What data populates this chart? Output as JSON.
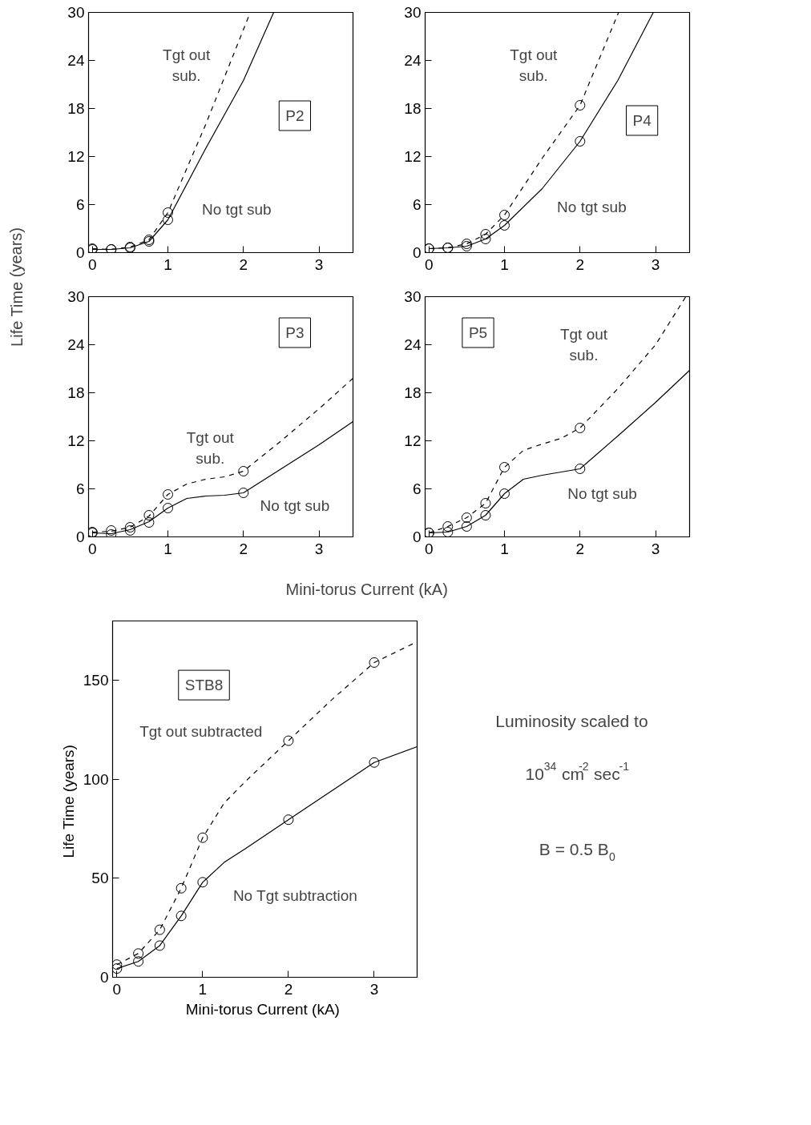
{
  "chart_data": [
    {
      "type": "line",
      "title": "P2",
      "ylabel": "Life Time  (years)",
      "xlim": [
        -0.05,
        3.45
      ],
      "ylim": [
        0,
        30
      ],
      "xticks": [
        0,
        1,
        2,
        3
      ],
      "yticks": [
        0,
        6,
        12,
        18,
        24,
        30
      ],
      "series": [
        {
          "line_style": "dashed",
          "color": "#000000",
          "x": [
            0,
            0.25,
            0.5,
            0.75,
            1,
            1.5,
            2.09
          ],
          "values": [
            0.5,
            0.4,
            0.7,
            1.6,
            5.0,
            16,
            30
          ]
        },
        {
          "line_style": "solid",
          "color": "#000000",
          "x": [
            0,
            0.25,
            0.5,
            0.75,
            1,
            1.5,
            2,
            2.4
          ],
          "values": [
            0.4,
            0.4,
            0.6,
            1.4,
            4.1,
            13,
            21.5,
            30
          ]
        },
        {
          "type": "scatter",
          "marker": "circle",
          "color": "#000000",
          "x": [
            0,
            0.25,
            0.5,
            0.75,
            1
          ],
          "values": [
            0.5,
            0.4,
            0.7,
            1.6,
            5.0
          ]
        },
        {
          "type": "scatter",
          "marker": "circle",
          "color": "#000000",
          "x": [
            0,
            0.25,
            0.5,
            0.75,
            1
          ],
          "values": [
            0.4,
            0.4,
            0.6,
            1.4,
            4.1
          ]
        }
      ],
      "annotations": [
        "Tgt out\nsub.",
        "No tgt sub"
      ]
    },
    {
      "type": "line",
      "title": "P4",
      "xlim": [
        -0.05,
        3.45
      ],
      "ylim": [
        0,
        30
      ],
      "xticks": [
        0,
        1,
        2,
        3
      ],
      "yticks": [
        0,
        6,
        12,
        18,
        24,
        30
      ],
      "series": [
        {
          "line_style": "dashed",
          "color": "#000000",
          "x": [
            0,
            0.25,
            0.5,
            0.75,
            1,
            1.5,
            2,
            2.51
          ],
          "values": [
            0.5,
            0.6,
            1.1,
            2.3,
            4.7,
            11.8,
            18.4,
            30
          ]
        },
        {
          "line_style": "solid",
          "color": "#000000",
          "x": [
            0,
            0.25,
            0.5,
            0.75,
            1,
            1.5,
            2,
            2.5,
            2.97
          ],
          "values": [
            0.5,
            0.6,
            0.8,
            1.7,
            3.4,
            8,
            13.9,
            21.5,
            30
          ]
        },
        {
          "type": "scatter",
          "marker": "circle",
          "color": "#000000",
          "x": [
            0,
            0.25,
            0.5,
            0.75,
            1,
            2
          ],
          "values": [
            0.5,
            0.6,
            1.1,
            2.3,
            4.7,
            18.4
          ]
        },
        {
          "type": "scatter",
          "marker": "circle",
          "color": "#000000",
          "x": [
            0,
            0.25,
            0.5,
            0.75,
            1,
            2
          ],
          "values": [
            0.5,
            0.6,
            0.8,
            1.7,
            3.4,
            13.9
          ]
        }
      ],
      "annotations": [
        "Tgt out\nsub.",
        "No tgt sub"
      ]
    },
    {
      "type": "line",
      "title": "P3",
      "xlabel": "Mini-torus Current  (kA)",
      "xlim": [
        -0.05,
        3.45
      ],
      "ylim": [
        0,
        30
      ],
      "xticks": [
        0,
        1,
        2,
        3
      ],
      "yticks": [
        0,
        6,
        12,
        18,
        24,
        30
      ],
      "series": [
        {
          "line_style": "dashed",
          "color": "#000000",
          "x": [
            0,
            0.25,
            0.5,
            0.75,
            1,
            1.25,
            1.5,
            1.75,
            2,
            2.5,
            3,
            3.45
          ],
          "values": [
            0.6,
            0.7,
            1.2,
            2.6,
            5.3,
            6.6,
            7.2,
            7.5,
            8.2,
            12,
            16,
            19.8
          ]
        },
        {
          "line_style": "solid",
          "color": "#000000",
          "x": [
            0,
            0.25,
            0.5,
            0.75,
            1,
            1.25,
            1.5,
            1.75,
            2,
            2.5,
            3,
            3.45
          ],
          "values": [
            0.5,
            0.4,
            0.9,
            1.9,
            3.6,
            4.8,
            5.1,
            5.2,
            5.5,
            8.5,
            11.5,
            14.4
          ]
        },
        {
          "type": "scatter",
          "marker": "circle",
          "color": "#000000",
          "x": [
            0,
            0.25,
            0.5,
            0.75,
            1,
            2
          ],
          "values": [
            0.6,
            0.8,
            1.2,
            2.7,
            5.3,
            8.2
          ]
        },
        {
          "type": "scatter",
          "marker": "circle",
          "color": "#000000",
          "x": [
            0,
            0.25,
            0.5,
            0.75,
            1,
            2
          ],
          "values": [
            0.5,
            0.3,
            0.8,
            1.8,
            3.6,
            5.5
          ]
        }
      ],
      "annotations": [
        "Tgt out\nsub.",
        "No tgt sub"
      ]
    },
    {
      "type": "line",
      "title": "P5",
      "xlim": [
        -0.05,
        3.45
      ],
      "ylim": [
        0,
        30
      ],
      "xticks": [
        0,
        1,
        2,
        3
      ],
      "yticks": [
        0,
        6,
        12,
        18,
        24,
        30
      ],
      "series": [
        {
          "line_style": "dashed",
          "color": "#000000",
          "x": [
            0,
            0.25,
            0.5,
            0.75,
            1,
            1.25,
            1.5,
            1.75,
            2,
            2.5,
            3,
            3.4
          ],
          "values": [
            0.5,
            1.3,
            2.4,
            4.2,
            8.7,
            10.8,
            11.6,
            12.3,
            13.6,
            18.5,
            24,
            30
          ]
        },
        {
          "line_style": "solid",
          "color": "#000000",
          "x": [
            0,
            0.25,
            0.5,
            0.75,
            1,
            1.25,
            1.5,
            1.75,
            2,
            2.5,
            3,
            3.45
          ],
          "values": [
            0.5,
            0.6,
            1.3,
            2.7,
            5.4,
            7.2,
            7.7,
            8.1,
            8.5,
            12.6,
            16.8,
            20.8
          ]
        },
        {
          "type": "scatter",
          "marker": "circle",
          "color": "#000000",
          "x": [
            0,
            0.25,
            0.5,
            0.75,
            1,
            2
          ],
          "values": [
            0.5,
            1.3,
            2.4,
            4.2,
            8.7,
            13.6
          ]
        },
        {
          "type": "scatter",
          "marker": "circle",
          "color": "#000000",
          "x": [
            0,
            0.25,
            0.5,
            0.75,
            1,
            2
          ],
          "values": [
            0.5,
            0.6,
            1.3,
            2.7,
            5.4,
            8.5
          ]
        }
      ],
      "annotations": [
        "Tgt out\nsub.",
        "No tgt sub"
      ]
    },
    {
      "type": "line",
      "title": "STB8",
      "xlabel": "Mini-torus Current  (kA)",
      "ylabel": "Life Time  (years)",
      "xlim": [
        -0.05,
        3.5
      ],
      "ylim": [
        0,
        180
      ],
      "xticks": [
        0,
        1,
        2,
        3
      ],
      "yticks": [
        0,
        50,
        100,
        150
      ],
      "series": [
        {
          "line_style": "dashed",
          "color": "#000000",
          "x": [
            0,
            0.25,
            0.5,
            0.75,
            1,
            1.25,
            1.5,
            2,
            2.5,
            3,
            3.5
          ],
          "values": [
            6.4,
            12,
            24,
            45,
            70.5,
            88,
            99,
            119.5,
            140,
            159,
            169.5
          ]
        },
        {
          "line_style": "solid",
          "color": "#000000",
          "x": [
            0,
            0.25,
            0.5,
            0.75,
            1,
            1.25,
            1.5,
            2,
            2.5,
            3,
            3.5
          ],
          "values": [
            4.4,
            8,
            16,
            31,
            48,
            58,
            65,
            79.6,
            94,
            108.5,
            116.5
          ]
        },
        {
          "type": "scatter",
          "marker": "circle",
          "color": "#000000",
          "x": [
            0,
            0.25,
            0.5,
            0.75,
            1,
            2,
            3
          ],
          "values": [
            6.4,
            12,
            24,
            45,
            70.5,
            119.5,
            159
          ]
        },
        {
          "type": "scatter",
          "marker": "circle",
          "color": "#000000",
          "x": [
            0,
            0.25,
            0.5,
            0.75,
            1,
            2,
            3
          ],
          "values": [
            4.4,
            8,
            16,
            31,
            48,
            79.6,
            108.5
          ]
        }
      ],
      "annotations": [
        "Tgt out subtracted",
        "No Tgt subtraction",
        "Luminosity scaled to",
        "10$^{34}$ cm$^{-2}$ sec$^{-1}$",
        "B = 0.5 B$_{0}$"
      ]
    }
  ]
}
